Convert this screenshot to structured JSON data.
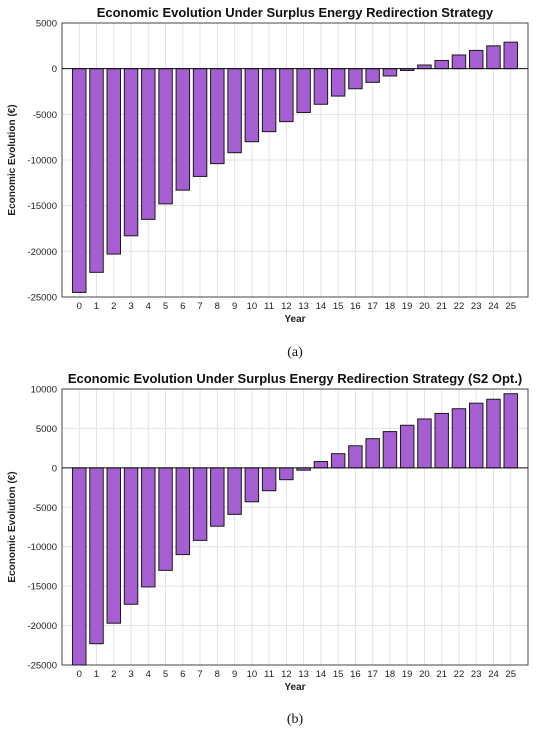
{
  "chart_data": [
    {
      "type": "bar",
      "title": "Economic Evolution Under Surplus Energy Redirection Strategy",
      "xlabel": "Year",
      "ylabel": "Economic Evolution (€)",
      "ylim": [
        -25000,
        5000
      ],
      "yticks": [
        5000,
        0,
        -5000,
        -10000,
        -15000,
        -20000,
        -25000
      ],
      "grid": true,
      "legend": "none",
      "bar_color": "#a55fd2",
      "categories": [
        "0",
        "1",
        "2",
        "3",
        "4",
        "5",
        "6",
        "7",
        "8",
        "9",
        "10",
        "11",
        "12",
        "13",
        "14",
        "15",
        "16",
        "17",
        "18",
        "19",
        "20",
        "21",
        "22",
        "23",
        "24",
        "25"
      ],
      "values": [
        -24500,
        -22300,
        -20300,
        -18300,
        -16500,
        -14800,
        -13300,
        -11800,
        -10400,
        -9200,
        -8000,
        -6900,
        -5800,
        -4800,
        -3900,
        -3000,
        -2200,
        -1500,
        -800,
        -200,
        400,
        900,
        1500,
        2000,
        2500,
        2900
      ],
      "panel_label": "(a)"
    },
    {
      "type": "bar",
      "title": "Economic Evolution Under Surplus Energy Redirection Strategy (S2 Opt.)",
      "xlabel": "Year",
      "ylabel": "Economic Evolution (€)",
      "ylim": [
        -25000,
        10000
      ],
      "yticks": [
        10000,
        5000,
        0,
        -5000,
        -10000,
        -15000,
        -20000,
        -25000
      ],
      "grid": true,
      "legend": "none",
      "bar_color": "#a55fd2",
      "categories": [
        "0",
        "1",
        "2",
        "3",
        "4",
        "5",
        "6",
        "7",
        "8",
        "9",
        "10",
        "11",
        "12",
        "13",
        "14",
        "15",
        "16",
        "17",
        "18",
        "19",
        "20",
        "21",
        "22",
        "23",
        "24",
        "25"
      ],
      "values": [
        -25000,
        -22300,
        -19700,
        -17300,
        -15100,
        -13000,
        -11000,
        -9200,
        -7400,
        -5900,
        -4300,
        -2900,
        -1500,
        -300,
        800,
        1800,
        2800,
        3700,
        4600,
        5400,
        6200,
        6900,
        7500,
        8200,
        8700,
        9400
      ],
      "panel_label": "(b)"
    }
  ]
}
